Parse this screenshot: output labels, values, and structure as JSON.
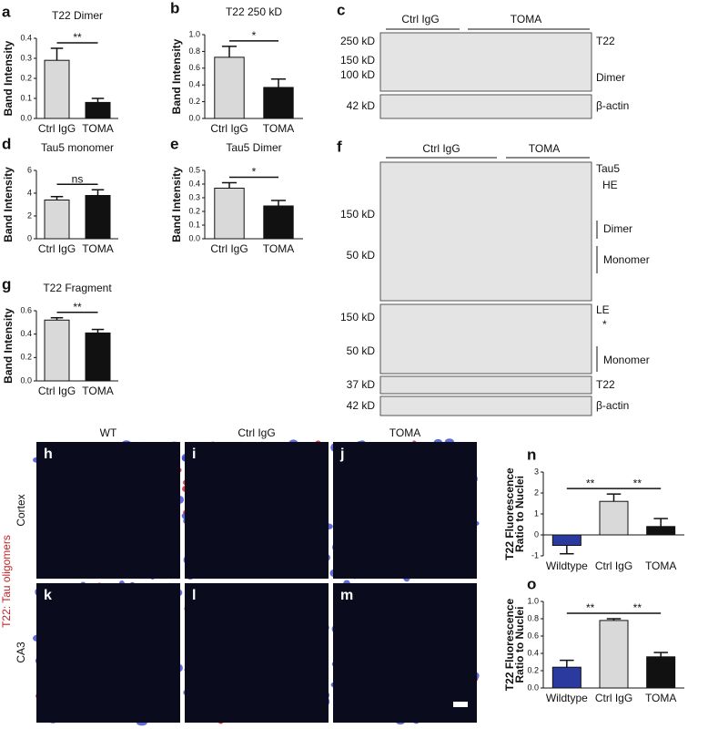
{
  "chart_data": [
    {
      "type": "bar",
      "panel": "a",
      "title": "T22  Dimer",
      "ylabel": "Band Intensity",
      "categories": [
        "Ctrl  IgG",
        "TOMA"
      ],
      "values": [
        0.29,
        0.08
      ],
      "errors": [
        0.06,
        0.02
      ],
      "colors": [
        "#d9d9d9",
        "#111111"
      ],
      "ylim": [
        0,
        0.4
      ],
      "yticks": [
        {
          "value": 0,
          "label": "0.0"
        },
        0.1,
        0.2,
        0.3,
        0.4
      ],
      "significance": [
        "**"
      ]
    },
    {
      "type": "bar",
      "panel": "b",
      "title": "T22 250 kD",
      "ylabel": "Band Intensity",
      "categories": [
        "Ctrl  IgG",
        "TOMA"
      ],
      "values": [
        0.73,
        0.37
      ],
      "errors": [
        0.13,
        0.1
      ],
      "colors": [
        "#d9d9d9",
        "#111111"
      ],
      "ylim": [
        0,
        1
      ],
      "yticks": [
        {
          "value": 0,
          "label": "0.0"
        },
        0.2,
        0.4,
        0.6,
        0.8,
        {
          "value": 1,
          "label": "1.0"
        }
      ],
      "significance": [
        "*"
      ]
    },
    {
      "type": "bar",
      "panel": "d",
      "title": "Tau5 monomer",
      "ylabel": "Band  Intensity",
      "categories": [
        "Ctrl  IgG",
        "TOMA"
      ],
      "values": [
        3.4,
        3.8
      ],
      "errors": [
        0.3,
        0.5
      ],
      "colors": [
        "#d9d9d9",
        "#111111"
      ],
      "ylim": [
        0,
        6
      ],
      "yticks": [
        0,
        2,
        4,
        6
      ],
      "significance": [
        "ns"
      ]
    },
    {
      "type": "bar",
      "panel": "e",
      "title": "Tau5 Dimer",
      "ylabel": "Band  Intensity",
      "categories": [
        "Ctrl  IgG",
        "TOMA"
      ],
      "values": [
        0.37,
        0.24
      ],
      "errors": [
        0.04,
        0.04
      ],
      "colors": [
        "#d9d9d9",
        "#111111"
      ],
      "ylim": [
        0,
        0.5
      ],
      "yticks": [
        {
          "value": 0,
          "label": "0.0"
        },
        0.1,
        0.2,
        0.3,
        0.4,
        0.5
      ],
      "significance": [
        "*"
      ]
    },
    {
      "type": "bar",
      "panel": "g",
      "title": "T22 Fragment",
      "ylabel": "Band Intensity",
      "categories": [
        "Ctrl  IgG",
        "TOMA"
      ],
      "values": [
        0.52,
        0.41
      ],
      "errors": [
        0.02,
        0.03
      ],
      "colors": [
        "#d9d9d9",
        "#111111"
      ],
      "ylim": [
        0,
        0.6
      ],
      "yticks": [
        {
          "value": 0,
          "label": "0.0"
        },
        0.2,
        0.4,
        0.6
      ],
      "significance": [
        "**"
      ]
    },
    {
      "type": "bar",
      "panel": "n",
      "ylabel": "T22 Fluorescence",
      "ysublabel": "Ratio to Nuclei",
      "categories": [
        "Wildtype",
        "Ctrl IgG",
        "TOMA"
      ],
      "values": [
        -0.5,
        1.6,
        0.4
      ],
      "errors": [
        0.4,
        0.35,
        0.38
      ],
      "colors": [
        "#2b3a9e",
        "#d9d9d9",
        "#111111"
      ],
      "ylim": [
        -1,
        3
      ],
      "yticks": [
        -1,
        0,
        1,
        2,
        3
      ],
      "significance": [
        "**",
        "**"
      ]
    },
    {
      "type": "bar",
      "panel": "o",
      "ylabel": "T22 Fluorescence",
      "ysublabel": "Ratio to Nuclei",
      "categories": [
        "Wildtype",
        "Ctrl IgG",
        "TOMA"
      ],
      "values": [
        0.24,
        0.78,
        0.36
      ],
      "errors": [
        0.08,
        0.02,
        0.05
      ],
      "colors": [
        "#2b3a9e",
        "#d9d9d9",
        "#111111"
      ],
      "ylim": [
        0,
        1
      ],
      "yticks": [
        {
          "value": 0,
          "label": "0.0"
        },
        0.2,
        0.4,
        0.6,
        0.8,
        {
          "value": 1,
          "label": "1.0"
        }
      ],
      "significance": [
        "**",
        "**"
      ]
    }
  ],
  "blots": [
    {
      "panel": "c",
      "groups": [
        "Ctrl IgG",
        "TOMA"
      ],
      "markers": [
        "250 kD",
        "150 kD",
        "100 kD",
        "42 kD"
      ],
      "labels": [
        "T22",
        "Dimer",
        "β-actin"
      ]
    },
    {
      "panel": "f",
      "groups": [
        "Ctrl IgG",
        "TOMA"
      ],
      "markers": [
        "150 kD",
        "50 kD",
        "150 kD",
        "50 kD",
        "37 kD",
        "42 kD"
      ],
      "labels": [
        "Tau5",
        "HE",
        "Dimer",
        "Monomer",
        "LE",
        "*",
        "Monomer",
        "T22",
        "β-actin"
      ]
    }
  ],
  "micrographs": {
    "columns": [
      "WT",
      "Ctrl IgG",
      "TOMA"
    ],
    "rows": [
      "Cortex",
      "CA3"
    ],
    "stain": "T22: Tau oligomers",
    "panels": [
      "h",
      "i",
      "j",
      "k",
      "l",
      "m"
    ]
  }
}
